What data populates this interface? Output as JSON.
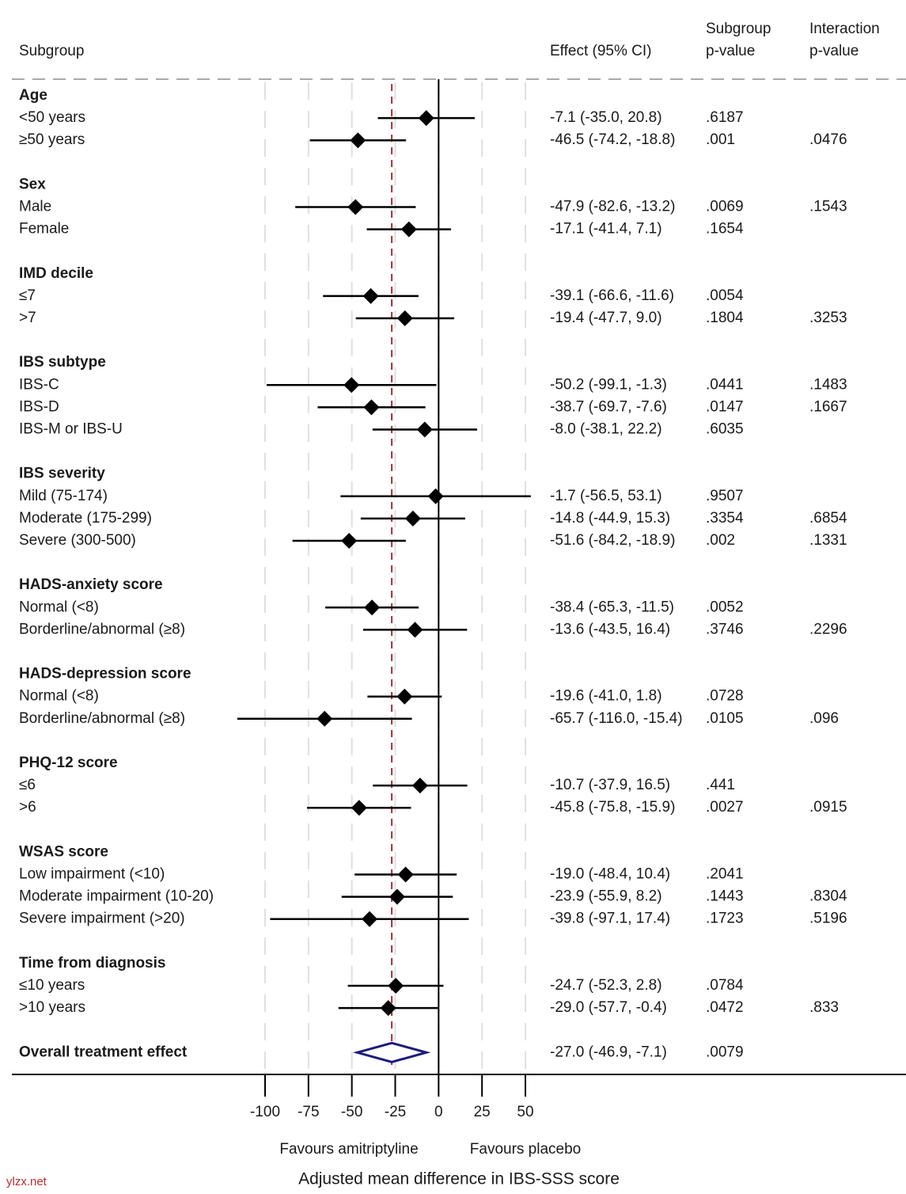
{
  "chart_data": {
    "type": "forest",
    "columns": {
      "subgroup": "Subgroup",
      "effect": "Effect (95% CI)",
      "subgroup_p": [
        "Subgroup",
        "p-value"
      ],
      "interaction_p": [
        "Interaction",
        "p-value"
      ]
    },
    "groups": [
      {
        "name": "Age",
        "rows": [
          {
            "label": "<50 years",
            "estimate": -7.1,
            "lower": -35.0,
            "upper": 20.8,
            "value_label": "-7.1 (-35.0, 20.8)",
            "subgroup_p": ".6187"
          },
          {
            "label": "≥50 years",
            "estimate": -46.5,
            "lower": -74.2,
            "upper": -18.8,
            "value_label": "-46.5 (-74.2, -18.8)",
            "subgroup_p": ".001",
            "interaction_p": ".0476"
          }
        ]
      },
      {
        "name": "Sex",
        "rows": [
          {
            "label": "Male",
            "estimate": -47.9,
            "lower": -82.6,
            "upper": -13.2,
            "value_label": "-47.9 (-82.6, -13.2)",
            "subgroup_p": ".0069",
            "interaction_p": ".1543"
          },
          {
            "label": "Female",
            "estimate": -17.1,
            "lower": -41.4,
            "upper": 7.1,
            "value_label": "-17.1 (-41.4, 7.1)",
            "subgroup_p": ".1654"
          }
        ]
      },
      {
        "name": "IMD decile",
        "rows": [
          {
            "label": "≤7",
            "estimate": -39.1,
            "lower": -66.6,
            "upper": -11.6,
            "value_label": "-39.1 (-66.6, -11.6)",
            "subgroup_p": ".0054"
          },
          {
            "label": ">7",
            "estimate": -19.4,
            "lower": -47.7,
            "upper": 9.0,
            "value_label": "-19.4 (-47.7, 9.0)",
            "subgroup_p": ".1804",
            "interaction_p": ".3253"
          }
        ]
      },
      {
        "name": "IBS subtype",
        "rows": [
          {
            "label": "IBS-C",
            "estimate": -50.2,
            "lower": -99.1,
            "upper": -1.3,
            "value_label": "-50.2 (-99.1, -1.3)",
            "subgroup_p": ".0441",
            "interaction_p": ".1483"
          },
          {
            "label": "IBS-D",
            "estimate": -38.7,
            "lower": -69.7,
            "upper": -7.6,
            "value_label": "-38.7 (-69.7, -7.6)",
            "subgroup_p": ".0147",
            "interaction_p": ".1667"
          },
          {
            "label": "IBS-M or IBS-U",
            "estimate": -8.0,
            "lower": -38.1,
            "upper": 22.2,
            "value_label": "-8.0 (-38.1, 22.2)",
            "subgroup_p": ".6035"
          }
        ]
      },
      {
        "name": "IBS severity",
        "rows": [
          {
            "label": "Mild (75-174)",
            "estimate": -1.7,
            "lower": -56.5,
            "upper": 53.1,
            "value_label": "-1.7 (-56.5, 53.1)",
            "subgroup_p": ".9507"
          },
          {
            "label": "Moderate (175-299)",
            "estimate": -14.8,
            "lower": -44.9,
            "upper": 15.3,
            "value_label": "-14.8 (-44.9, 15.3)",
            "subgroup_p": ".3354",
            "interaction_p": ".6854"
          },
          {
            "label": "Severe (300-500)",
            "estimate": -51.6,
            "lower": -84.2,
            "upper": -18.9,
            "value_label": "-51.6 (-84.2, -18.9)",
            "subgroup_p": ".002",
            "interaction_p": ".1331"
          }
        ]
      },
      {
        "name": "HADS-anxiety score",
        "rows": [
          {
            "label": "Normal (<8)",
            "estimate": -38.4,
            "lower": -65.3,
            "upper": -11.5,
            "value_label": "-38.4 (-65.3, -11.5)",
            "subgroup_p": ".0052"
          },
          {
            "label": "Borderline/abnormal (≥8)",
            "estimate": -13.6,
            "lower": -43.5,
            "upper": 16.4,
            "value_label": "-13.6 (-43.5, 16.4)",
            "subgroup_p": ".3746",
            "interaction_p": ".2296"
          }
        ]
      },
      {
        "name": "HADS-depression score",
        "rows": [
          {
            "label": "Normal (<8)",
            "estimate": -19.6,
            "lower": -41.0,
            "upper": 1.8,
            "value_label": "-19.6 (-41.0, 1.8)",
            "subgroup_p": ".0728"
          },
          {
            "label": "Borderline/abnormal (≥8)",
            "estimate": -65.7,
            "lower": -116.0,
            "upper": -15.4,
            "value_label": "-65.7 (-116.0, -15.4)",
            "subgroup_p": ".0105",
            "interaction_p": ".096"
          }
        ]
      },
      {
        "name": "PHQ-12 score",
        "rows": [
          {
            "label": "≤6",
            "estimate": -10.7,
            "lower": -37.9,
            "upper": 16.5,
            "value_label": "-10.7 (-37.9, 16.5)",
            "subgroup_p": ".441"
          },
          {
            "label": ">6",
            "estimate": -45.8,
            "lower": -75.8,
            "upper": -15.9,
            "value_label": "-45.8 (-75.8, -15.9)",
            "subgroup_p": ".0027",
            "interaction_p": ".0915"
          }
        ]
      },
      {
        "name": "WSAS score",
        "rows": [
          {
            "label": "Low impairment (<10)",
            "estimate": -19.0,
            "lower": -48.4,
            "upper": 10.4,
            "value_label": "-19.0 (-48.4, 10.4)",
            "subgroup_p": ".2041"
          },
          {
            "label": "Moderate impairment (10-20)",
            "estimate": -23.9,
            "lower": -55.9,
            "upper": 8.2,
            "value_label": "-23.9 (-55.9, 8.2)",
            "subgroup_p": ".1443",
            "interaction_p": ".8304"
          },
          {
            "label": "Severe impairment (>20)",
            "estimate": -39.8,
            "lower": -97.1,
            "upper": 17.4,
            "value_label": "-39.8 (-97.1, 17.4)",
            "subgroup_p": ".1723",
            "interaction_p": ".5196"
          }
        ]
      },
      {
        "name": "Time from diagnosis",
        "rows": [
          {
            "label": "≤10 years",
            "estimate": -24.7,
            "lower": -52.3,
            "upper": 2.8,
            "value_label": "-24.7 (-52.3, 2.8)",
            "subgroup_p": ".0784"
          },
          {
            "label": ">10 years",
            "estimate": -29.0,
            "lower": -57.7,
            "upper": -0.4,
            "value_label": "-29.0 (-57.7, -0.4)",
            "subgroup_p": ".0472",
            "interaction_p": ".833"
          }
        ]
      }
    ],
    "overall": {
      "label": "Overall treatment effect",
      "estimate": -27.0,
      "lower": -46.9,
      "upper": -7.1,
      "value_label": "-27.0 (-46.9, -7.1)",
      "subgroup_p": ".0079"
    },
    "reference_line": 0,
    "xlim": [
      -100,
      50
    ],
    "xticks": [
      -100,
      -75,
      -50,
      -25,
      0,
      25,
      50
    ],
    "grid": true,
    "marker_color": "#000000",
    "overall_color": "#1c1c7a",
    "overall_line_color": "#a0303a",
    "favours_left": "Favours amitriptyline",
    "favours_right": "Favours placebo",
    "x_label": "Adjusted mean difference in IBS-SSS score",
    "watermark": "ylzx.net"
  }
}
